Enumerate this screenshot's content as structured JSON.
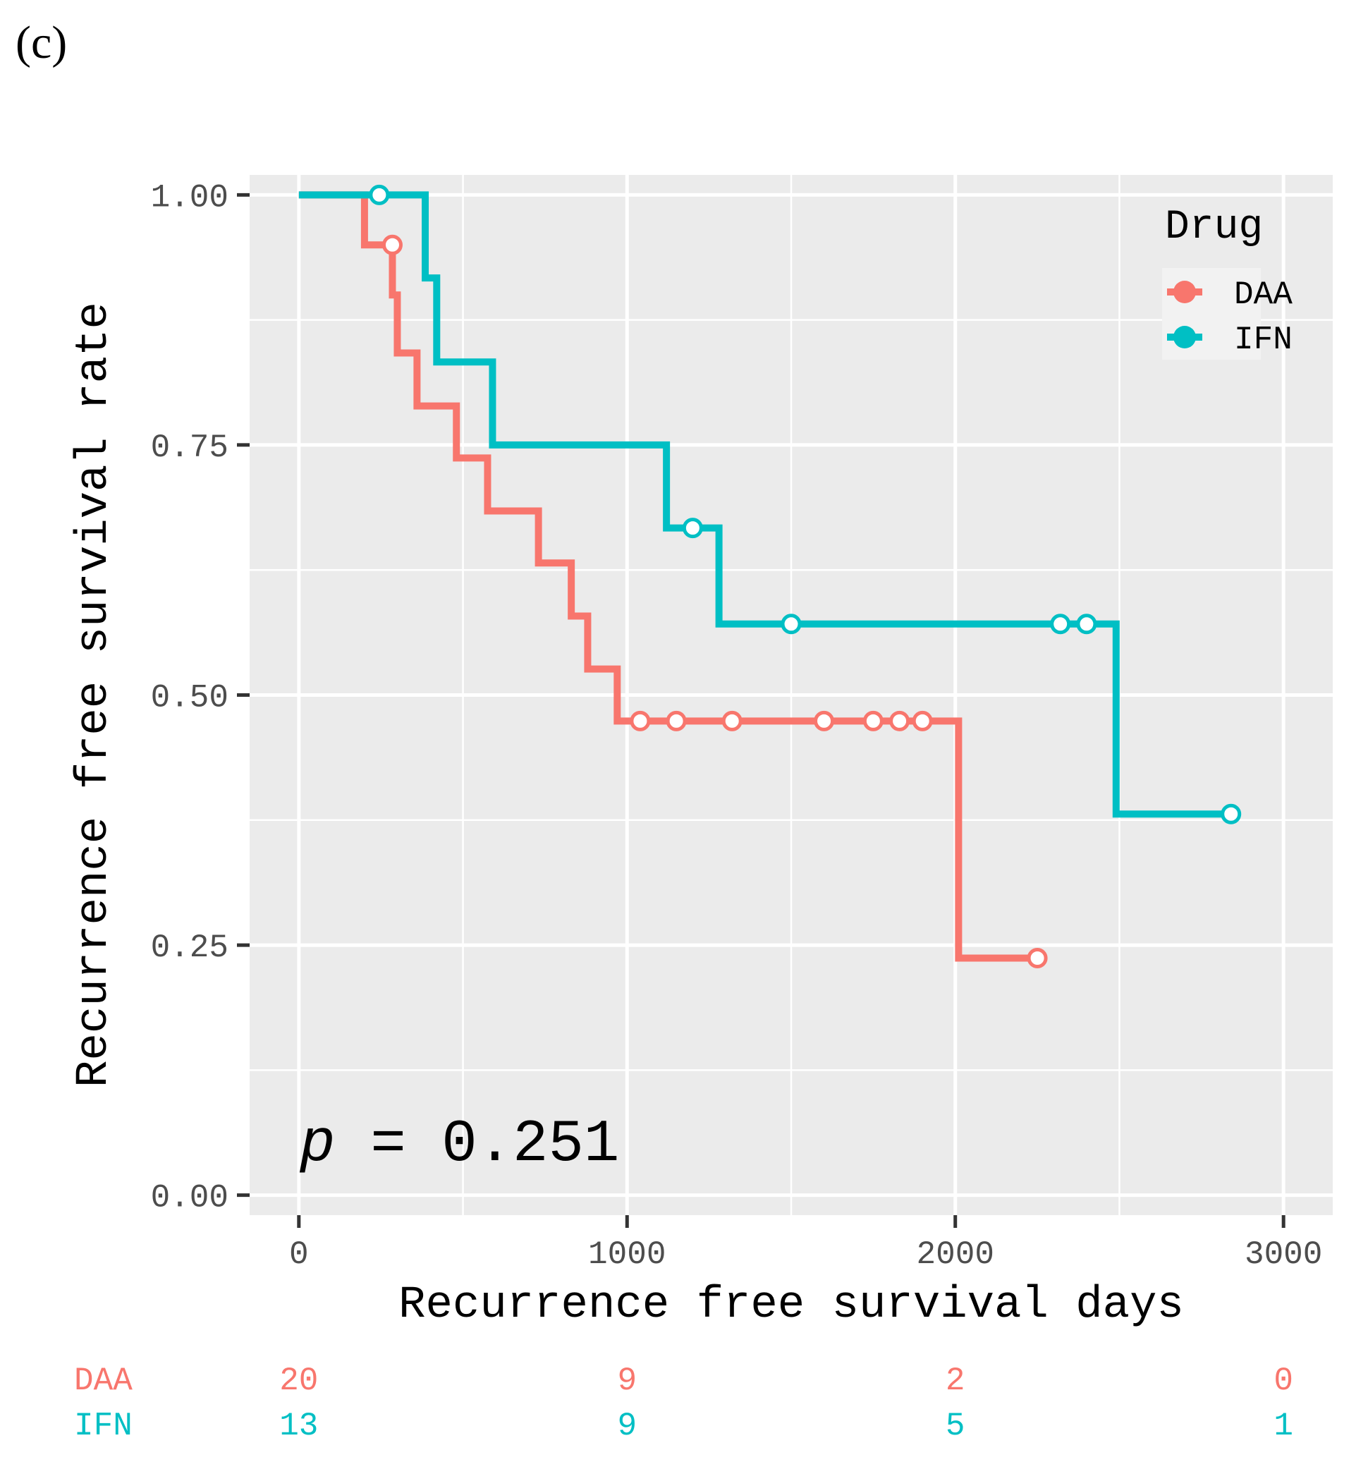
{
  "panel_label": "(c)",
  "chart_data": {
    "type": "line",
    "subtype": "kaplan-meier-step",
    "xlabel": "Recurrence free survival days",
    "ylabel": "Recurrence free survival rate",
    "xlim": [
      -150,
      3150
    ],
    "ylim": [
      -0.02,
      1.02
    ],
    "x_ticks": [
      0,
      1000,
      2000,
      3000
    ],
    "x_tick_labels": [
      "0",
      "1000",
      "2000",
      "3000"
    ],
    "y_ticks": [
      0,
      0.25,
      0.5,
      0.75,
      1.0
    ],
    "y_tick_labels": [
      "0.00",
      "0.25",
      "0.50",
      "0.75",
      "1.00"
    ],
    "grid": true,
    "legend": {
      "title": "Drug",
      "position": "top-right"
    },
    "annotation": {
      "p_symbol": "p",
      "p_text": "= 0.251",
      "position": "bottom-left"
    },
    "series": [
      {
        "name": "DAA",
        "color": "#F8766D",
        "steps": [
          [
            0,
            1.0
          ],
          [
            200,
            0.95
          ],
          [
            285,
            0.9
          ],
          [
            300,
            0.842
          ],
          [
            360,
            0.789
          ],
          [
            480,
            0.737
          ],
          [
            575,
            0.684
          ],
          [
            730,
            0.632
          ],
          [
            830,
            0.579
          ],
          [
            880,
            0.526
          ],
          [
            970,
            0.474
          ],
          [
            2010,
            0.237
          ],
          [
            2250,
            0.237
          ]
        ],
        "censored": [
          [
            285,
            0.95
          ],
          [
            1040,
            0.474
          ],
          [
            1150,
            0.474
          ],
          [
            1320,
            0.474
          ],
          [
            1600,
            0.474
          ],
          [
            1750,
            0.474
          ],
          [
            1830,
            0.474
          ],
          [
            1900,
            0.474
          ],
          [
            2250,
            0.237
          ]
        ]
      },
      {
        "name": "IFN",
        "color": "#00BFC4",
        "steps": [
          [
            0,
            1.0
          ],
          [
            385,
            0.917
          ],
          [
            420,
            0.833
          ],
          [
            590,
            0.75
          ],
          [
            1120,
            0.667
          ],
          [
            1280,
            0.571
          ],
          [
            2490,
            0.381
          ],
          [
            2840,
            0.381
          ]
        ],
        "censored": [
          [
            245,
            1.0
          ],
          [
            1200,
            0.667
          ],
          [
            1500,
            0.571
          ],
          [
            2320,
            0.571
          ],
          [
            2400,
            0.571
          ],
          [
            2840,
            0.381
          ]
        ]
      }
    ],
    "risk_table": {
      "times": [
        0,
        1000,
        2000,
        3000
      ],
      "rows": [
        {
          "name": "DAA",
          "color": "#F8766D",
          "counts": [
            "20",
            "9",
            "2",
            "0"
          ]
        },
        {
          "name": "IFN",
          "color": "#00BFC4",
          "counts": [
            "13",
            "9",
            "5",
            "1"
          ]
        }
      ]
    }
  }
}
